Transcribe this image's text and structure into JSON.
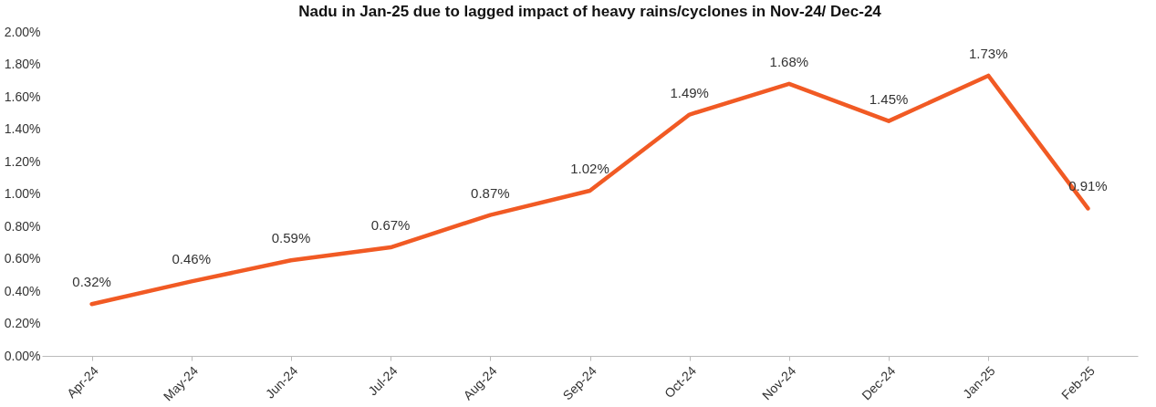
{
  "chart_data": {
    "type": "line",
    "title": "Nadu in Jan-25 due to lagged impact of heavy rains/cyclones in Nov-24/ Dec-24",
    "categories": [
      "Apr-24",
      "May-24",
      "Jun-24",
      "Jul-24",
      "Aug-24",
      "Sep-24",
      "Oct-24",
      "Nov-24",
      "Dec-24",
      "Jan-25",
      "Feb-25"
    ],
    "series": [
      {
        "color": "#f15a24",
        "values": [
          0.32,
          0.46,
          0.59,
          0.67,
          0.87,
          1.02,
          1.49,
          1.68,
          1.45,
          1.73,
          0.91
        ],
        "value_labels": [
          "0.32%",
          "0.46%",
          "0.59%",
          "0.67%",
          "0.87%",
          "1.02%",
          "1.49%",
          "1.68%",
          "1.45%",
          "1.73%",
          "0.91%"
        ]
      }
    ],
    "ylim": [
      0,
      2
    ],
    "yticks": [
      {
        "value": 0,
        "label": "0.00%"
      },
      {
        "value": 0.2,
        "label": "0.20%"
      },
      {
        "value": 0.4,
        "label": "0.40%"
      },
      {
        "value": 0.6,
        "label": "0.60%"
      },
      {
        "value": 0.8,
        "label": "0.80%"
      },
      {
        "value": 1,
        "label": "1.00%"
      },
      {
        "value": 1.2,
        "label": "1.20%"
      },
      {
        "value": 1.4,
        "label": "1.40%"
      },
      {
        "value": 1.6,
        "label": "1.60%"
      },
      {
        "value": 1.8,
        "label": "1.80%"
      },
      {
        "value": 2,
        "label": "2.00%"
      }
    ],
    "grid": false,
    "marker": "none",
    "line_style": "solid"
  }
}
